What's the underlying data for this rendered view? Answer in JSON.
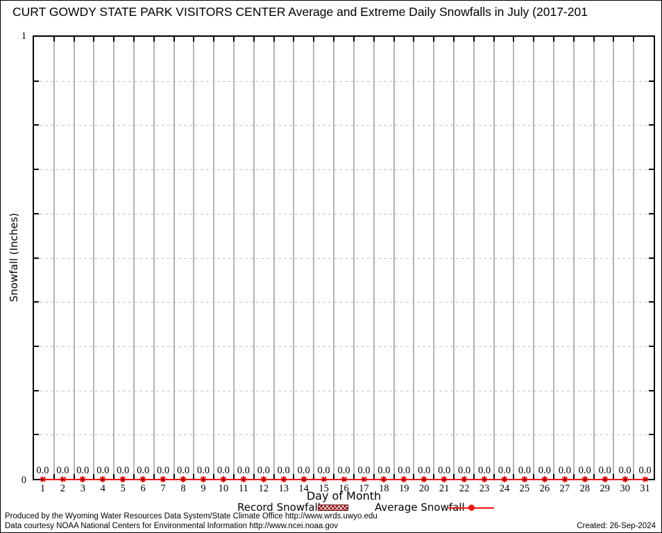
{
  "chart_data": {
    "type": "line",
    "title": "CURT GOWDY STATE PARK VISITORS CENTER Average and Extreme Daily Snowfalls in July (2017-201",
    "xlabel": "Day of Month",
    "ylabel": "Snowfall (Inches)",
    "x": [
      1,
      2,
      3,
      4,
      5,
      6,
      7,
      8,
      9,
      10,
      11,
      12,
      13,
      14,
      15,
      16,
      17,
      18,
      19,
      20,
      21,
      22,
      23,
      24,
      25,
      26,
      27,
      28,
      29,
      30,
      31
    ],
    "series": [
      {
        "name": "Record Snowfall",
        "type": "bar-hatched",
        "color": "#8b0000",
        "values": [
          0,
          0,
          0,
          0,
          0,
          0,
          0,
          0,
          0,
          0,
          0,
          0,
          0,
          0,
          0,
          0,
          0,
          0,
          0,
          0,
          0,
          0,
          0,
          0,
          0,
          0,
          0,
          0,
          0,
          0,
          0
        ]
      },
      {
        "name": "Average Snowfall",
        "type": "line-points",
        "color": "#f01414",
        "values": [
          0,
          0,
          0,
          0,
          0,
          0,
          0,
          0,
          0,
          0,
          0,
          0,
          0,
          0,
          0,
          0,
          0,
          0,
          0,
          0,
          0,
          0,
          0,
          0,
          0,
          0,
          0,
          0,
          0,
          0,
          0
        ]
      }
    ],
    "point_labels": [
      "0.0",
      "0.0",
      "0.0",
      "0.0",
      "0.0",
      "0.0",
      "0.0",
      "0.0",
      "0.0",
      "0.0",
      "0.0",
      "0.0",
      "0.0",
      "0.0",
      "0.0",
      "0.0",
      "0.0",
      "0.0",
      "0.0",
      "0.0",
      "0.0",
      "0.0",
      "0.0",
      "0.0",
      "0.0",
      "0.0",
      "0.0",
      "0.0",
      "0.0",
      "0.0",
      "0.0"
    ],
    "ylim": [
      0,
      1
    ],
    "ytick_step": 0.1,
    "yticks": {
      "top": "1",
      "bottom": "0"
    },
    "grid": "on",
    "legend_position": "bottom"
  },
  "colors": {
    "grid_vertical": "#b4b4b4",
    "grid_dashed": "#c2c2c2",
    "axis": "#000000",
    "average_line": "#f01414",
    "record_swatch": "#8b0000"
  },
  "footer": {
    "line1": "Produced by the Wyoming Water Resources Data System/State Climate Office http://www.wrds.uwyo.edu",
    "line2": "Data courtesy NOAA National Centers for Environmental Information http://www.ncei.noaa.gov",
    "created": "Created: 26-Sep-2024"
  }
}
